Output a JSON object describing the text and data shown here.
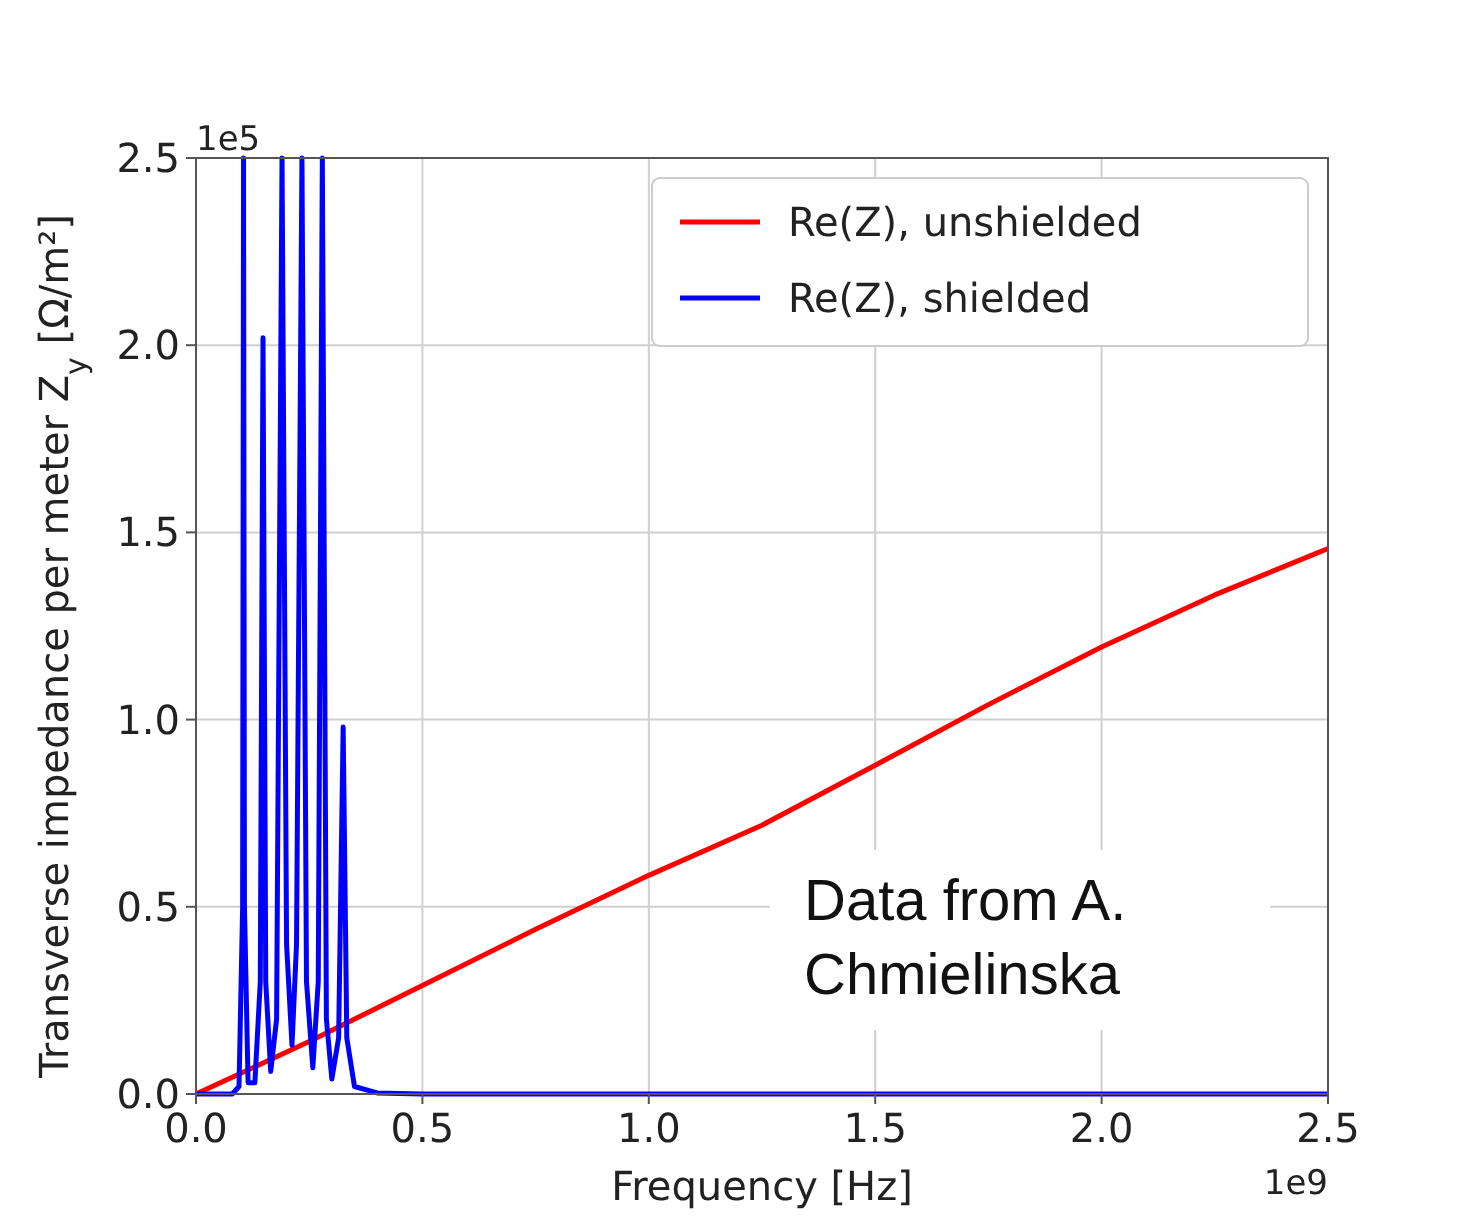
{
  "chart_data": {
    "type": "line",
    "xlabel": "Frequency [Hz]",
    "ylabel": "Transverse impedance per meter Z$_{y}$ [Ω/m²]",
    "xlim": [
      0,
      2.5
    ],
    "ylim": [
      0,
      2.5
    ],
    "xticks": [
      {
        "value": 0,
        "label": "0.0"
      },
      0.5,
      {
        "value": 1,
        "label": "1.0"
      },
      1.5,
      {
        "value": 2,
        "label": "2.0"
      },
      2.5
    ],
    "yticks": [
      {
        "value": 0,
        "label": "0.0"
      },
      0.5,
      {
        "value": 1,
        "label": "1.0"
      },
      1.5,
      {
        "value": 2,
        "label": "2.0"
      },
      2.5
    ],
    "grid": true,
    "legend": "top right",
    "line_style": "solid",
    "annotations": [
      "1e5",
      "1e9",
      "Data from A. Chmielinska"
    ],
    "series": [
      {
        "name": "Re(Z), unshielded",
        "color": "#ff0000",
        "x": [
          0,
          0.25,
          0.5,
          0.75,
          1.0,
          1.25,
          1.5,
          1.75,
          2.0,
          2.25,
          2.5
        ],
        "values": [
          0,
          0.14,
          0.29,
          0.44,
          0.584,
          0.718,
          0.878,
          1.04,
          1.194,
          1.333,
          1.457
        ]
      },
      {
        "name": "Re(Z), shielded",
        "color": "#0000ff",
        "x": [
          0,
          0.08,
          0.095,
          0.103,
          0.105,
          0.107,
          0.115,
          0.13,
          0.142,
          0.148,
          0.154,
          0.165,
          0.178,
          0.19,
          0.2,
          0.212,
          0.222,
          0.234,
          0.244,
          0.258,
          0.27,
          0.279,
          0.288,
          0.3,
          0.315,
          0.325,
          0.333,
          0.35,
          0.4,
          0.5,
          2.5
        ],
        "values": [
          0,
          0,
          0.02,
          0.5,
          2.5,
          0.5,
          0.03,
          0.03,
          0.3,
          2.02,
          0.3,
          0.06,
          0.2,
          2.5,
          0.4,
          0.13,
          0.4,
          2.5,
          0.3,
          0.07,
          0.3,
          2.5,
          0.2,
          0.04,
          0.15,
          0.98,
          0.15,
          0.02,
          0.003,
          0,
          0
        ]
      }
    ]
  }
}
